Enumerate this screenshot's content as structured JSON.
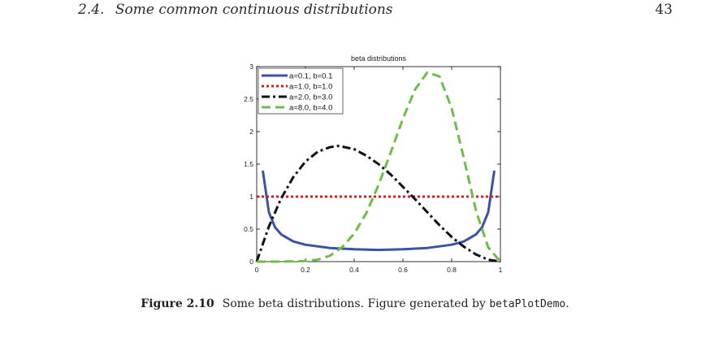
{
  "page": {
    "section_number": "2.4.",
    "section_title": "Some common continuous distributions",
    "page_number": "43"
  },
  "caption": {
    "label": "Figure 2.10",
    "text": "Some beta distributions. Figure generated by ",
    "code": "betaPlotDemo",
    "end": "."
  },
  "chart_data": {
    "type": "line",
    "title": "beta distributions",
    "xlabel": "",
    "ylabel": "",
    "xlim": [
      0,
      1
    ],
    "ylim": [
      0,
      3
    ],
    "xticks": [
      "0",
      "0.2",
      "0.4",
      "0.6",
      "0.8",
      "1"
    ],
    "yticks": [
      "0",
      "0.5",
      "1",
      "1.5",
      "2",
      "2.5",
      "3"
    ],
    "grid": false,
    "legend_position": "top-left",
    "series": [
      {
        "name": "a=0.1, b=0.1",
        "color": "#3a53a4",
        "style": "solid",
        "x": [
          0.025,
          0.05,
          0.075,
          0.1,
          0.15,
          0.2,
          0.3,
          0.4,
          0.5,
          0.6,
          0.7,
          0.8,
          0.85,
          0.9,
          0.925,
          0.95,
          0.975
        ],
        "y": [
          1.4,
          0.76,
          0.53,
          0.42,
          0.31,
          0.26,
          0.21,
          0.19,
          0.18,
          0.19,
          0.21,
          0.26,
          0.31,
          0.42,
          0.53,
          0.76,
          1.4
        ]
      },
      {
        "name": "a=1.0, b=1.0",
        "color": "#e0191c",
        "style": "dotted",
        "x": [
          0,
          1
        ],
        "y": [
          1,
          1
        ]
      },
      {
        "name": "a=2.0, b=3.0",
        "color": "#111111",
        "style": "dashdot",
        "x": [
          0,
          0.05,
          0.1,
          0.15,
          0.2,
          0.25,
          0.3,
          0.333,
          0.35,
          0.4,
          0.45,
          0.5,
          0.55,
          0.6,
          0.65,
          0.7,
          0.75,
          0.8,
          0.85,
          0.9,
          0.95,
          1
        ],
        "y": [
          0,
          0.54,
          0.97,
          1.3,
          1.54,
          1.69,
          1.76,
          1.78,
          1.77,
          1.73,
          1.63,
          1.5,
          1.34,
          1.15,
          0.96,
          0.76,
          0.56,
          0.38,
          0.23,
          0.11,
          0.03,
          0
        ]
      },
      {
        "name": "a=8.0, b=4.0",
        "color": "#6abf45",
        "style": "dashed",
        "x": [
          0,
          0.1,
          0.2,
          0.25,
          0.3,
          0.35,
          0.4,
          0.45,
          0.5,
          0.55,
          0.6,
          0.65,
          0.7,
          0.75,
          0.8,
          0.85,
          0.9,
          0.95,
          1
        ],
        "y": [
          0,
          0.0,
          0.01,
          0.03,
          0.09,
          0.22,
          0.43,
          0.75,
          1.18,
          1.68,
          2.2,
          2.65,
          2.91,
          2.85,
          2.36,
          1.59,
          0.78,
          0.22,
          0
        ]
      }
    ]
  }
}
